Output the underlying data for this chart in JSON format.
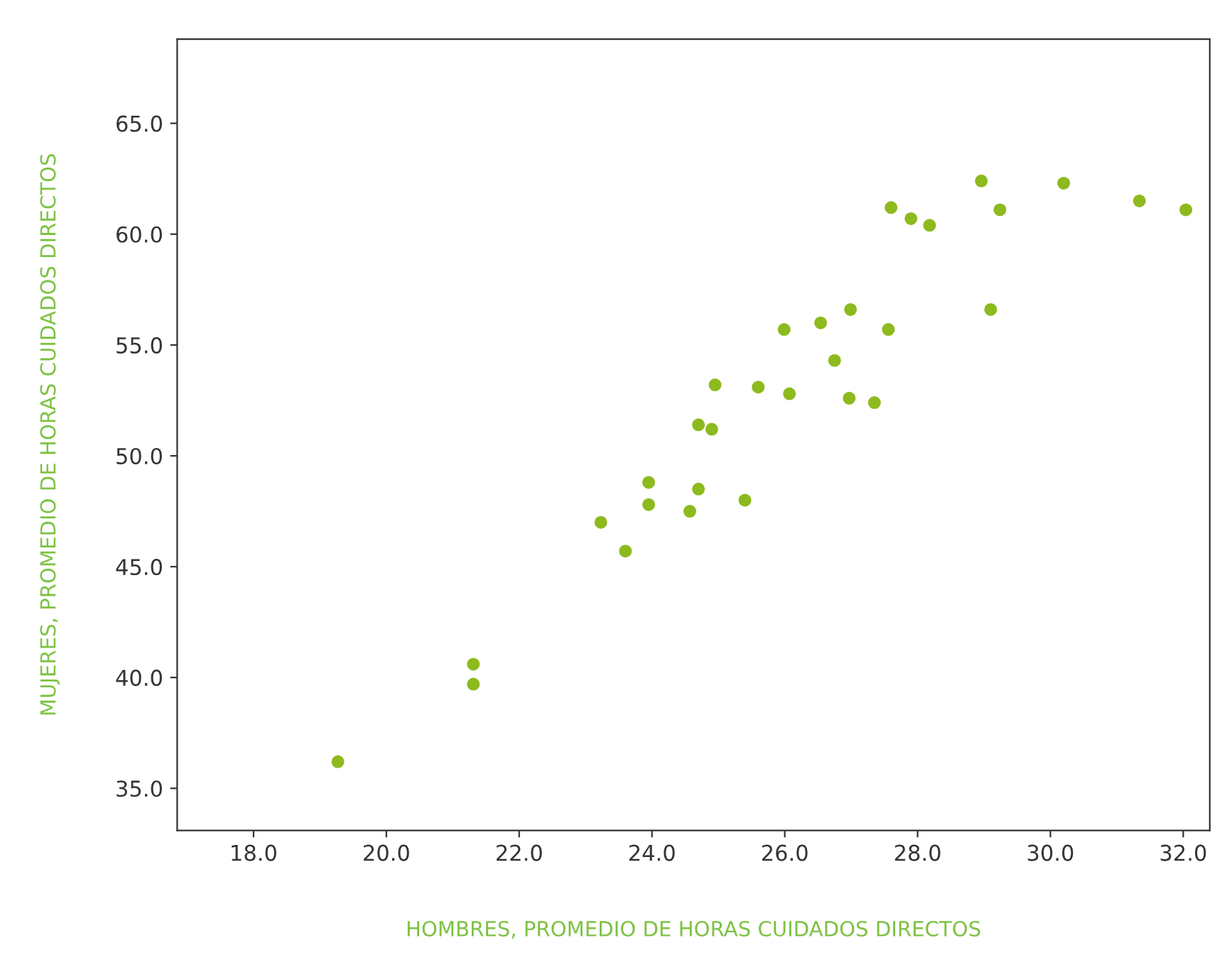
{
  "chart_data": {
    "type": "scatter",
    "xlabel": "HOMBRES, PROMEDIO DE HORAS CUIDADOS DIRECTOS",
    "ylabel": "MUJERES, PROMEDIO DE HORAS CUIDADOS DIRECTOS",
    "x": [
      19.27,
      21.31,
      21.31,
      23.23,
      23.6,
      23.95,
      23.95,
      24.7,
      24.57,
      25.4,
      24.7,
      24.9,
      24.95,
      25.6,
      26.07,
      25.99,
      26.54,
      26.99,
      26.75,
      26.97,
      27.35,
      27.56,
      29.1,
      27.6,
      27.9,
      28.18,
      28.96,
      29.24,
      30.2,
      31.34,
      32.04
    ],
    "values": [
      36.2,
      40.6,
      39.7,
      47.0,
      45.7,
      48.8,
      47.8,
      48.5,
      47.5,
      48.0,
      51.4,
      51.2,
      53.2,
      53.1,
      52.8,
      55.7,
      56.0,
      56.6,
      54.3,
      52.6,
      52.4,
      55.7,
      56.6,
      61.2,
      60.7,
      60.4,
      62.4,
      61.1,
      62.3,
      61.5,
      61.1
    ],
    "color": "#8dba1e",
    "marker": "circle",
    "xlim": [
      16.85,
      32.4
    ],
    "ylim": [
      33.1,
      68.8
    ],
    "xticks": [
      {
        "value": 18,
        "label": "18.0"
      },
      {
        "value": 20,
        "label": "20.0"
      },
      {
        "value": 22,
        "label": "22.0"
      },
      {
        "value": 24,
        "label": "24.0"
      },
      {
        "value": 26,
        "label": "26.0"
      },
      {
        "value": 28,
        "label": "28.0"
      },
      {
        "value": 30,
        "label": "30.0"
      },
      {
        "value": 32,
        "label": "32.0"
      }
    ],
    "yticks": [
      {
        "value": 35,
        "label": "35.0"
      },
      {
        "value": 40,
        "label": "40.0"
      },
      {
        "value": 45,
        "label": "45.0"
      },
      {
        "value": 50,
        "label": "50.0"
      },
      {
        "value": 55,
        "label": "55.0"
      },
      {
        "value": 60,
        "label": "60.0"
      },
      {
        "value": 65,
        "label": "65.0"
      }
    ],
    "grid": false
  }
}
